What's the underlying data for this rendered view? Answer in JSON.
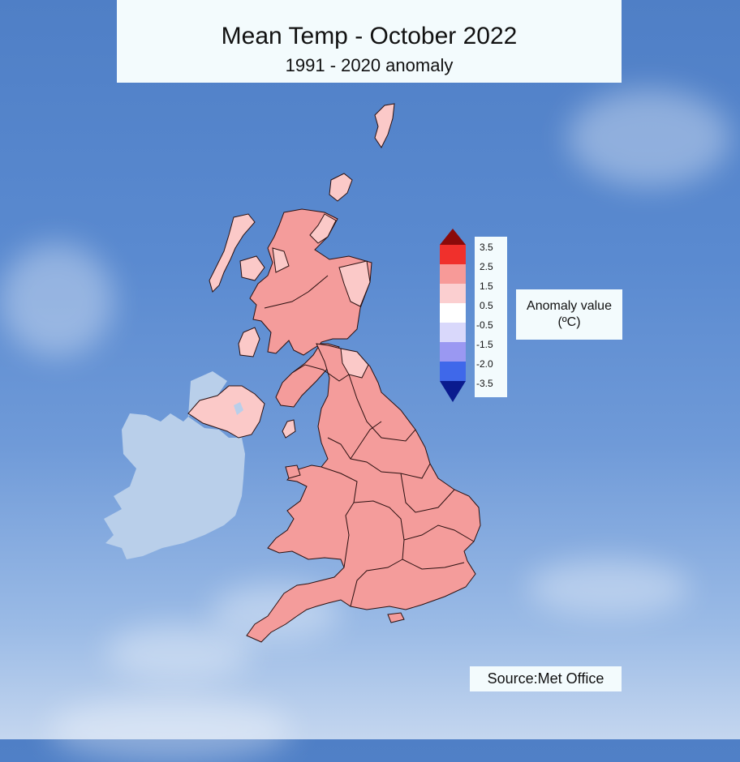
{
  "title": "Mean Temp - October 2022",
  "subtitle": "1991 - 2020 anomaly",
  "legend": {
    "label_line1": "Anomaly value",
    "label_line2": "(ºC)",
    "ticks": [
      "3.5",
      "2.5",
      "1.5",
      "0.5",
      "-0.5",
      "-1.5",
      "-2.0",
      "-3.5"
    ],
    "colors": {
      "max_arrow": "#8b0a0a",
      "c1": "#f0302c",
      "c2": "#f79a98",
      "c3": "#fbcfd0",
      "c4": "#ffffff",
      "c5": "#d9d8fb",
      "c6": "#9a98f2",
      "c7": "#3f68ea",
      "min_arrow": "#0a1b8e"
    }
  },
  "map_colors": {
    "uk_main": "#f49c9b",
    "uk_light": "#fbc9c8",
    "ireland": "#b9cfea",
    "border": "#2a1010"
  },
  "source": "Source:Met Office"
}
